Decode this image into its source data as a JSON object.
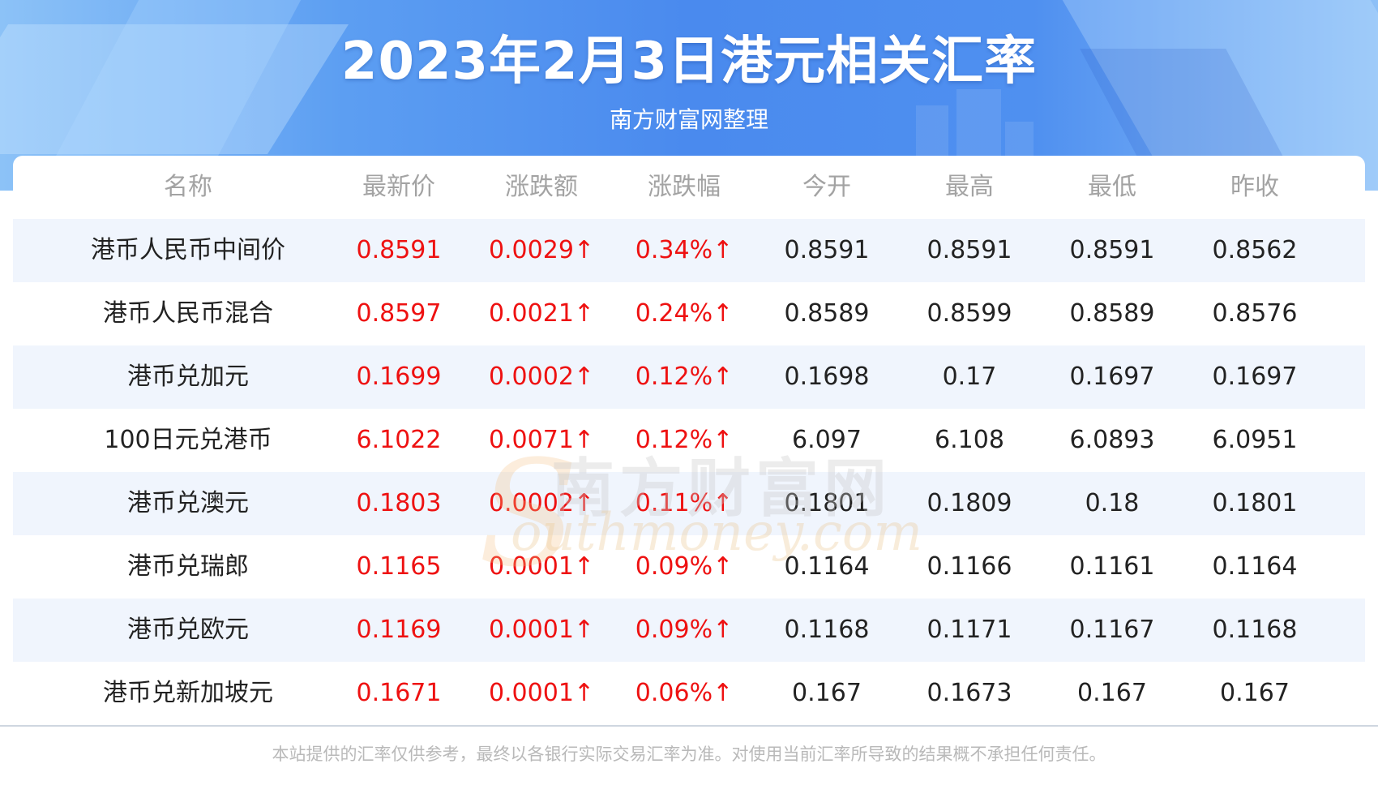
{
  "header": {
    "title": "2023年2月3日港元相关汇率",
    "subtitle": "南方财富网整理"
  },
  "table": {
    "columns": [
      "名称",
      "最新价",
      "涨跌额",
      "涨跌幅",
      "今开",
      "最高",
      "最低",
      "昨收"
    ],
    "rows": [
      [
        "港币人民币中间价",
        "0.8591",
        "0.0029↑",
        "0.34%↑",
        "0.8591",
        "0.8591",
        "0.8591",
        "0.8562"
      ],
      [
        "港币人民币混合",
        "0.8597",
        "0.0021↑",
        "0.24%↑",
        "0.8589",
        "0.8599",
        "0.8589",
        "0.8576"
      ],
      [
        "港币兑加元",
        "0.1699",
        "0.0002↑",
        "0.12%↑",
        "0.1698",
        "0.17",
        "0.1697",
        "0.1697"
      ],
      [
        "100日元兑港币",
        "6.1022",
        "0.0071↑",
        "0.12%↑",
        "6.097",
        "6.108",
        "6.0893",
        "6.0951"
      ],
      [
        "港币兑澳元",
        "0.1803",
        "0.0002↑",
        "0.11%↑",
        "0.1801",
        "0.1809",
        "0.18",
        "0.1801"
      ],
      [
        "港币兑瑞郎",
        "0.1165",
        "0.0001↑",
        "0.09%↑",
        "0.1164",
        "0.1166",
        "0.1161",
        "0.1164"
      ],
      [
        "港币兑欧元",
        "0.1169",
        "0.0001↑",
        "0.09%↑",
        "0.1168",
        "0.1171",
        "0.1167",
        "0.1168"
      ],
      [
        "港币兑新加坡元",
        "0.1671",
        "0.0001↑",
        "0.06%↑",
        "0.167",
        "0.1673",
        "0.167",
        "0.167"
      ]
    ]
  },
  "watermark": {
    "cn": "南方财富网",
    "en": "outhmoney.com",
    "s": "S"
  },
  "footer": {
    "disclaimer": "本站提供的汇率仅供参考，最终以各银行实际交易汇率为准。对使用当前汇率所导致的结果概不承担任何责任。"
  },
  "colors": {
    "up": "#ee1111",
    "header_text": "#a3a3a3",
    "stripe": "#f0f5fd"
  }
}
